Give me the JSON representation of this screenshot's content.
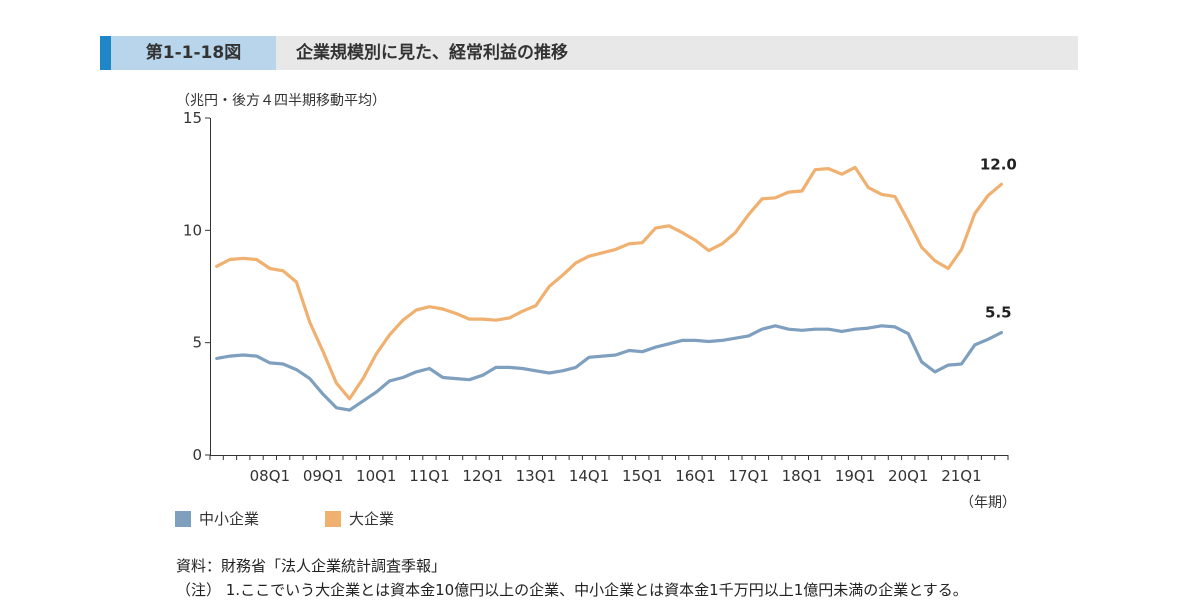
{
  "header": {
    "figure_number": "第1-1-18図",
    "title": "企業規模別に見た、経常利益の推移"
  },
  "unit_label": "（兆円・後方４四半期移動平均）",
  "x_unit_label": "（年期）",
  "source": "資料：財務省「法人企業統計調査季報」",
  "note": "（注） 1.ここでいう大企業とは資本金10億円以上の企業、中小企業とは資本金1千万円以上1億円未満の企業とする。",
  "colors": {
    "small": "#7f9fbf",
    "large": "#f0b070",
    "axis": "#333333"
  },
  "chart_data": {
    "type": "line",
    "title": "企業規模別に見た、経常利益の推移",
    "ylabel": "（兆円・後方４四半期移動平均）",
    "xlabel": "（年期）",
    "ylim": [
      0,
      15
    ],
    "yticks": [
      0,
      5,
      10,
      15
    ],
    "x_tick_labels": [
      "08Q1",
      "09Q1",
      "10Q1",
      "11Q1",
      "12Q1",
      "13Q1",
      "14Q1",
      "15Q1",
      "16Q1",
      "17Q1",
      "18Q1",
      "19Q1",
      "20Q1",
      "21Q1"
    ],
    "x_tick_index": [
      4,
      8,
      12,
      16,
      20,
      24,
      28,
      32,
      36,
      40,
      44,
      48,
      52,
      56
    ],
    "grid": false,
    "legend": "bottom-left",
    "series": [
      {
        "name": "中小企業",
        "color": "#7f9fbf",
        "end_label": "5.5",
        "values": [
          4.3,
          4.4,
          4.45,
          4.4,
          4.1,
          4.05,
          3.8,
          3.4,
          2.7,
          2.1,
          2.0,
          2.4,
          2.8,
          3.3,
          3.45,
          3.7,
          3.85,
          3.45,
          3.4,
          3.35,
          3.55,
          3.9,
          3.9,
          3.85,
          3.75,
          3.65,
          3.75,
          3.9,
          4.35,
          4.4,
          4.45,
          4.65,
          4.6,
          4.8,
          4.95,
          5.1,
          5.1,
          5.05,
          5.1,
          5.2,
          5.3,
          5.6,
          5.75,
          5.6,
          5.55,
          5.6,
          5.6,
          5.5,
          5.6,
          5.65,
          5.75,
          5.7,
          5.4,
          4.15,
          3.7,
          4.0,
          4.05,
          4.9,
          5.15,
          5.45
        ]
      },
      {
        "name": "大企業",
        "color": "#f0b070",
        "end_label": "12.0",
        "values": [
          8.4,
          8.7,
          8.75,
          8.7,
          8.3,
          8.2,
          7.7,
          5.9,
          4.6,
          3.2,
          2.5,
          3.4,
          4.5,
          5.35,
          6.0,
          6.45,
          6.6,
          6.5,
          6.3,
          6.05,
          6.05,
          6.0,
          6.1,
          6.4,
          6.65,
          7.5,
          8.0,
          8.55,
          8.85,
          9.0,
          9.15,
          9.4,
          9.45,
          10.1,
          10.2,
          9.9,
          9.55,
          9.1,
          9.4,
          9.9,
          10.7,
          11.4,
          11.45,
          11.7,
          11.75,
          12.7,
          12.75,
          12.5,
          12.8,
          11.9,
          11.6,
          11.5,
          10.4,
          9.25,
          8.65,
          8.3,
          9.15,
          10.75,
          11.55,
          12.05
        ]
      }
    ]
  },
  "legend_items": [
    {
      "label": "中小企業"
    },
    {
      "label": "大企業"
    }
  ]
}
